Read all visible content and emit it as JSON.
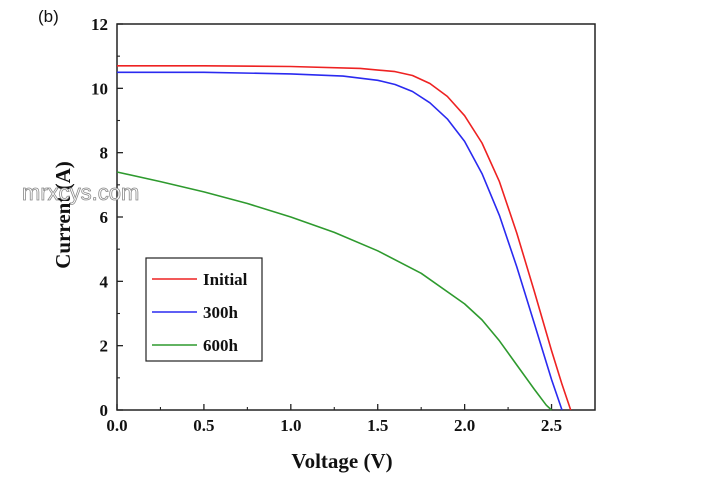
{
  "panel_label": "(b)",
  "watermark": "mrxcys.com",
  "chart_data": {
    "type": "line",
    "xlabel": "Voltage (V)",
    "ylabel": "Current (A)",
    "xlim": [
      0,
      2.75
    ],
    "ylim": [
      0,
      12
    ],
    "xticks": [
      "0.0",
      "0.5",
      "1.0",
      "1.5",
      "2.0",
      "2.5"
    ],
    "yticks": [
      "0",
      "2",
      "4",
      "6",
      "8",
      "10",
      "12"
    ],
    "grid": false,
    "legend_position": "bottom-left",
    "series": [
      {
        "name": "Initial",
        "color": "#ee2222",
        "x": [
          0,
          0.5,
          1.0,
          1.4,
          1.6,
          1.7,
          1.8,
          1.9,
          2.0,
          2.1,
          2.2,
          2.3,
          2.4,
          2.5,
          2.56,
          2.61
        ],
        "y": [
          10.7,
          10.7,
          10.68,
          10.62,
          10.52,
          10.4,
          10.15,
          9.75,
          9.15,
          8.3,
          7.1,
          5.5,
          3.7,
          1.85,
          0.8,
          0
        ]
      },
      {
        "name": "300h",
        "color": "#2a2af0",
        "x": [
          0,
          0.5,
          1.0,
          1.3,
          1.5,
          1.6,
          1.7,
          1.8,
          1.9,
          2.0,
          2.1,
          2.2,
          2.3,
          2.4,
          2.5,
          2.56
        ],
        "y": [
          10.5,
          10.5,
          10.45,
          10.38,
          10.25,
          10.12,
          9.9,
          9.55,
          9.05,
          8.35,
          7.35,
          6.05,
          4.45,
          2.7,
          0.95,
          0
        ]
      },
      {
        "name": "600h",
        "color": "#2e9a2e",
        "x": [
          0,
          0.25,
          0.5,
          0.75,
          1.0,
          1.25,
          1.5,
          1.75,
          2.0,
          2.1,
          2.2,
          2.3,
          2.4,
          2.47,
          2.5
        ],
        "y": [
          7.4,
          7.1,
          6.78,
          6.42,
          6.0,
          5.52,
          4.95,
          4.25,
          3.3,
          2.8,
          2.15,
          1.4,
          0.65,
          0.15,
          0
        ]
      }
    ]
  }
}
